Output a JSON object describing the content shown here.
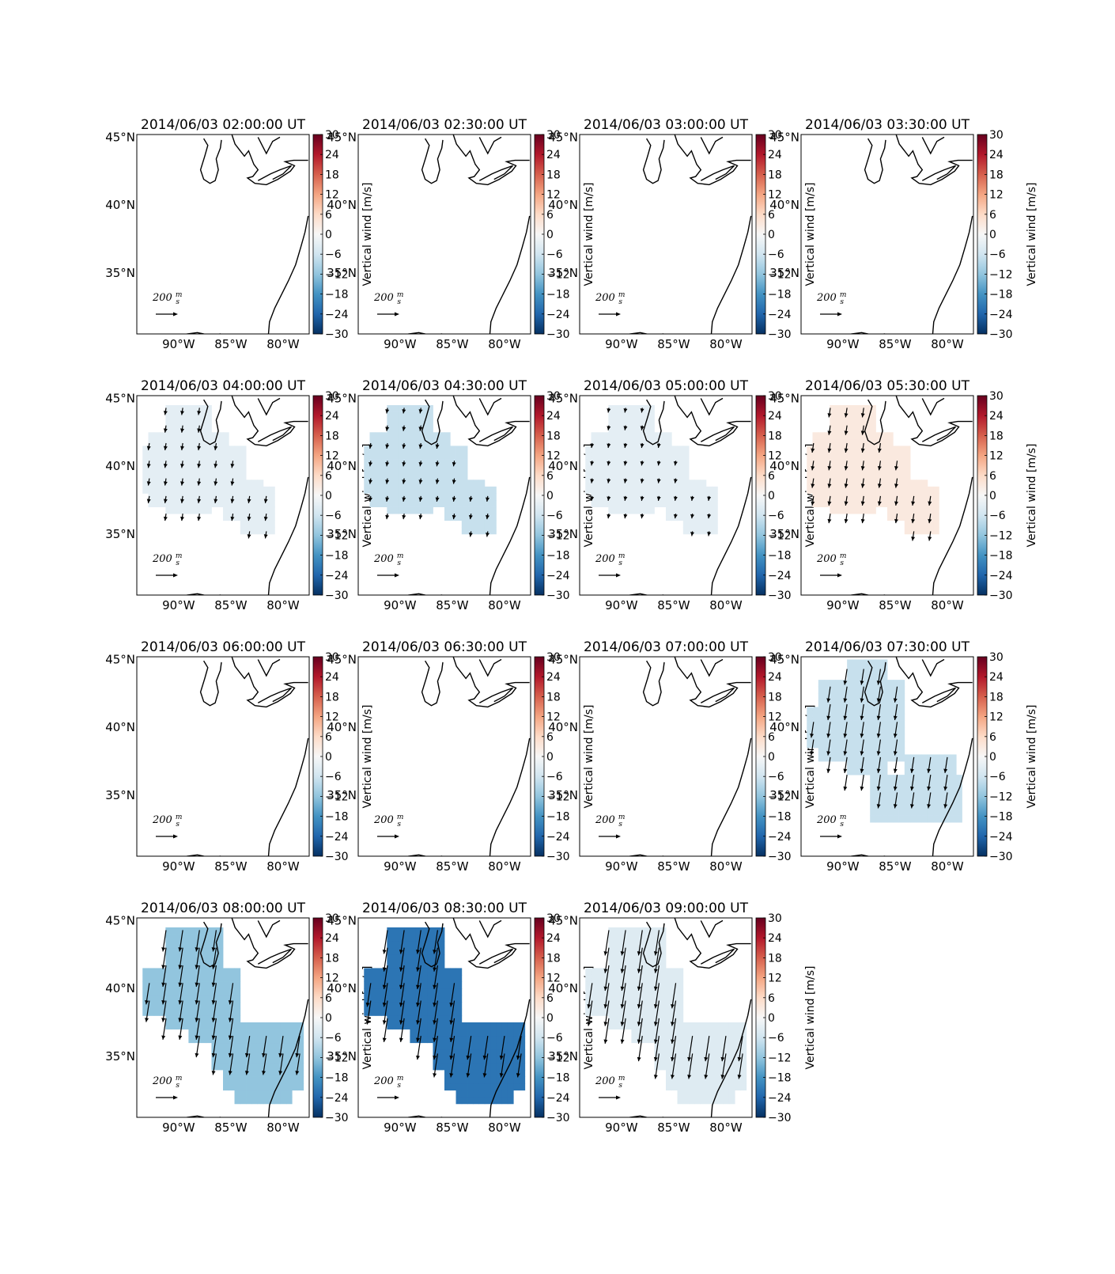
{
  "figure": {
    "colorbar_label": "Vertical wind [m/s]",
    "scale_arrow_label": "200",
    "scale_arrow_unit_num": "m",
    "scale_arrow_unit_den": "s",
    "lat_ticks": [
      "45°N",
      "40°N",
      "35°N"
    ],
    "lon_ticks": [
      "90°W",
      "85°W",
      "80°W"
    ],
    "colorbar_ticks": [
      "30",
      "24",
      "18",
      "12",
      "6",
      "0",
      "−6",
      "−12",
      "−18",
      "−24",
      "−30"
    ],
    "colormap": "RdBu_r"
  },
  "chart_data": [
    {
      "type": "heatmap",
      "title": "2014/06/03 02:00:00 UT",
      "vertical_wind": null
    },
    {
      "type": "heatmap",
      "title": "2014/06/03 02:30:00 UT",
      "vertical_wind": null
    },
    {
      "type": "heatmap",
      "title": "2014/06/03 03:00:00 UT",
      "vertical_wind": null
    },
    {
      "type": "heatmap",
      "title": "2014/06/03 03:30:00 UT",
      "vertical_wind": null
    },
    {
      "type": "heatmap",
      "title": "2014/06/03 04:00:00 UT",
      "vertical_wind": -3,
      "region": "A",
      "arrow_scale": 0.45
    },
    {
      "type": "heatmap",
      "title": "2014/06/03 04:30:00 UT",
      "vertical_wind": -7,
      "region": "A",
      "arrow_scale": 0.35
    },
    {
      "type": "heatmap",
      "title": "2014/06/03 05:00:00 UT",
      "vertical_wind": -3,
      "region": "A",
      "arrow_scale": 0.3
    },
    {
      "type": "heatmap",
      "title": "2014/06/03 05:30:00 UT",
      "vertical_wind": 3,
      "region": "A",
      "arrow_scale": 0.6
    },
    {
      "type": "heatmap",
      "title": "2014/06/03 06:00:00 UT",
      "vertical_wind": null
    },
    {
      "type": "heatmap",
      "title": "2014/06/03 06:30:00 UT",
      "vertical_wind": null
    },
    {
      "type": "heatmap",
      "title": "2014/06/03 07:00:00 UT",
      "vertical_wind": null
    },
    {
      "type": "heatmap",
      "title": "2014/06/03 07:30:00 UT",
      "vertical_wind": -7,
      "region": "B",
      "arrow_scale": 1.0
    },
    {
      "type": "heatmap",
      "title": "2014/06/03 08:00:00 UT",
      "vertical_wind": -12,
      "region": "C",
      "arrow_scale": 1.35
    },
    {
      "type": "heatmap",
      "title": "2014/06/03 08:30:00 UT",
      "vertical_wind": -22,
      "region": "C",
      "arrow_scale": 1.5
    },
    {
      "type": "heatmap",
      "title": "2014/06/03 09:00:00 UT",
      "vertical_wind": -4,
      "region": "C",
      "arrow_scale": 1.6
    }
  ]
}
